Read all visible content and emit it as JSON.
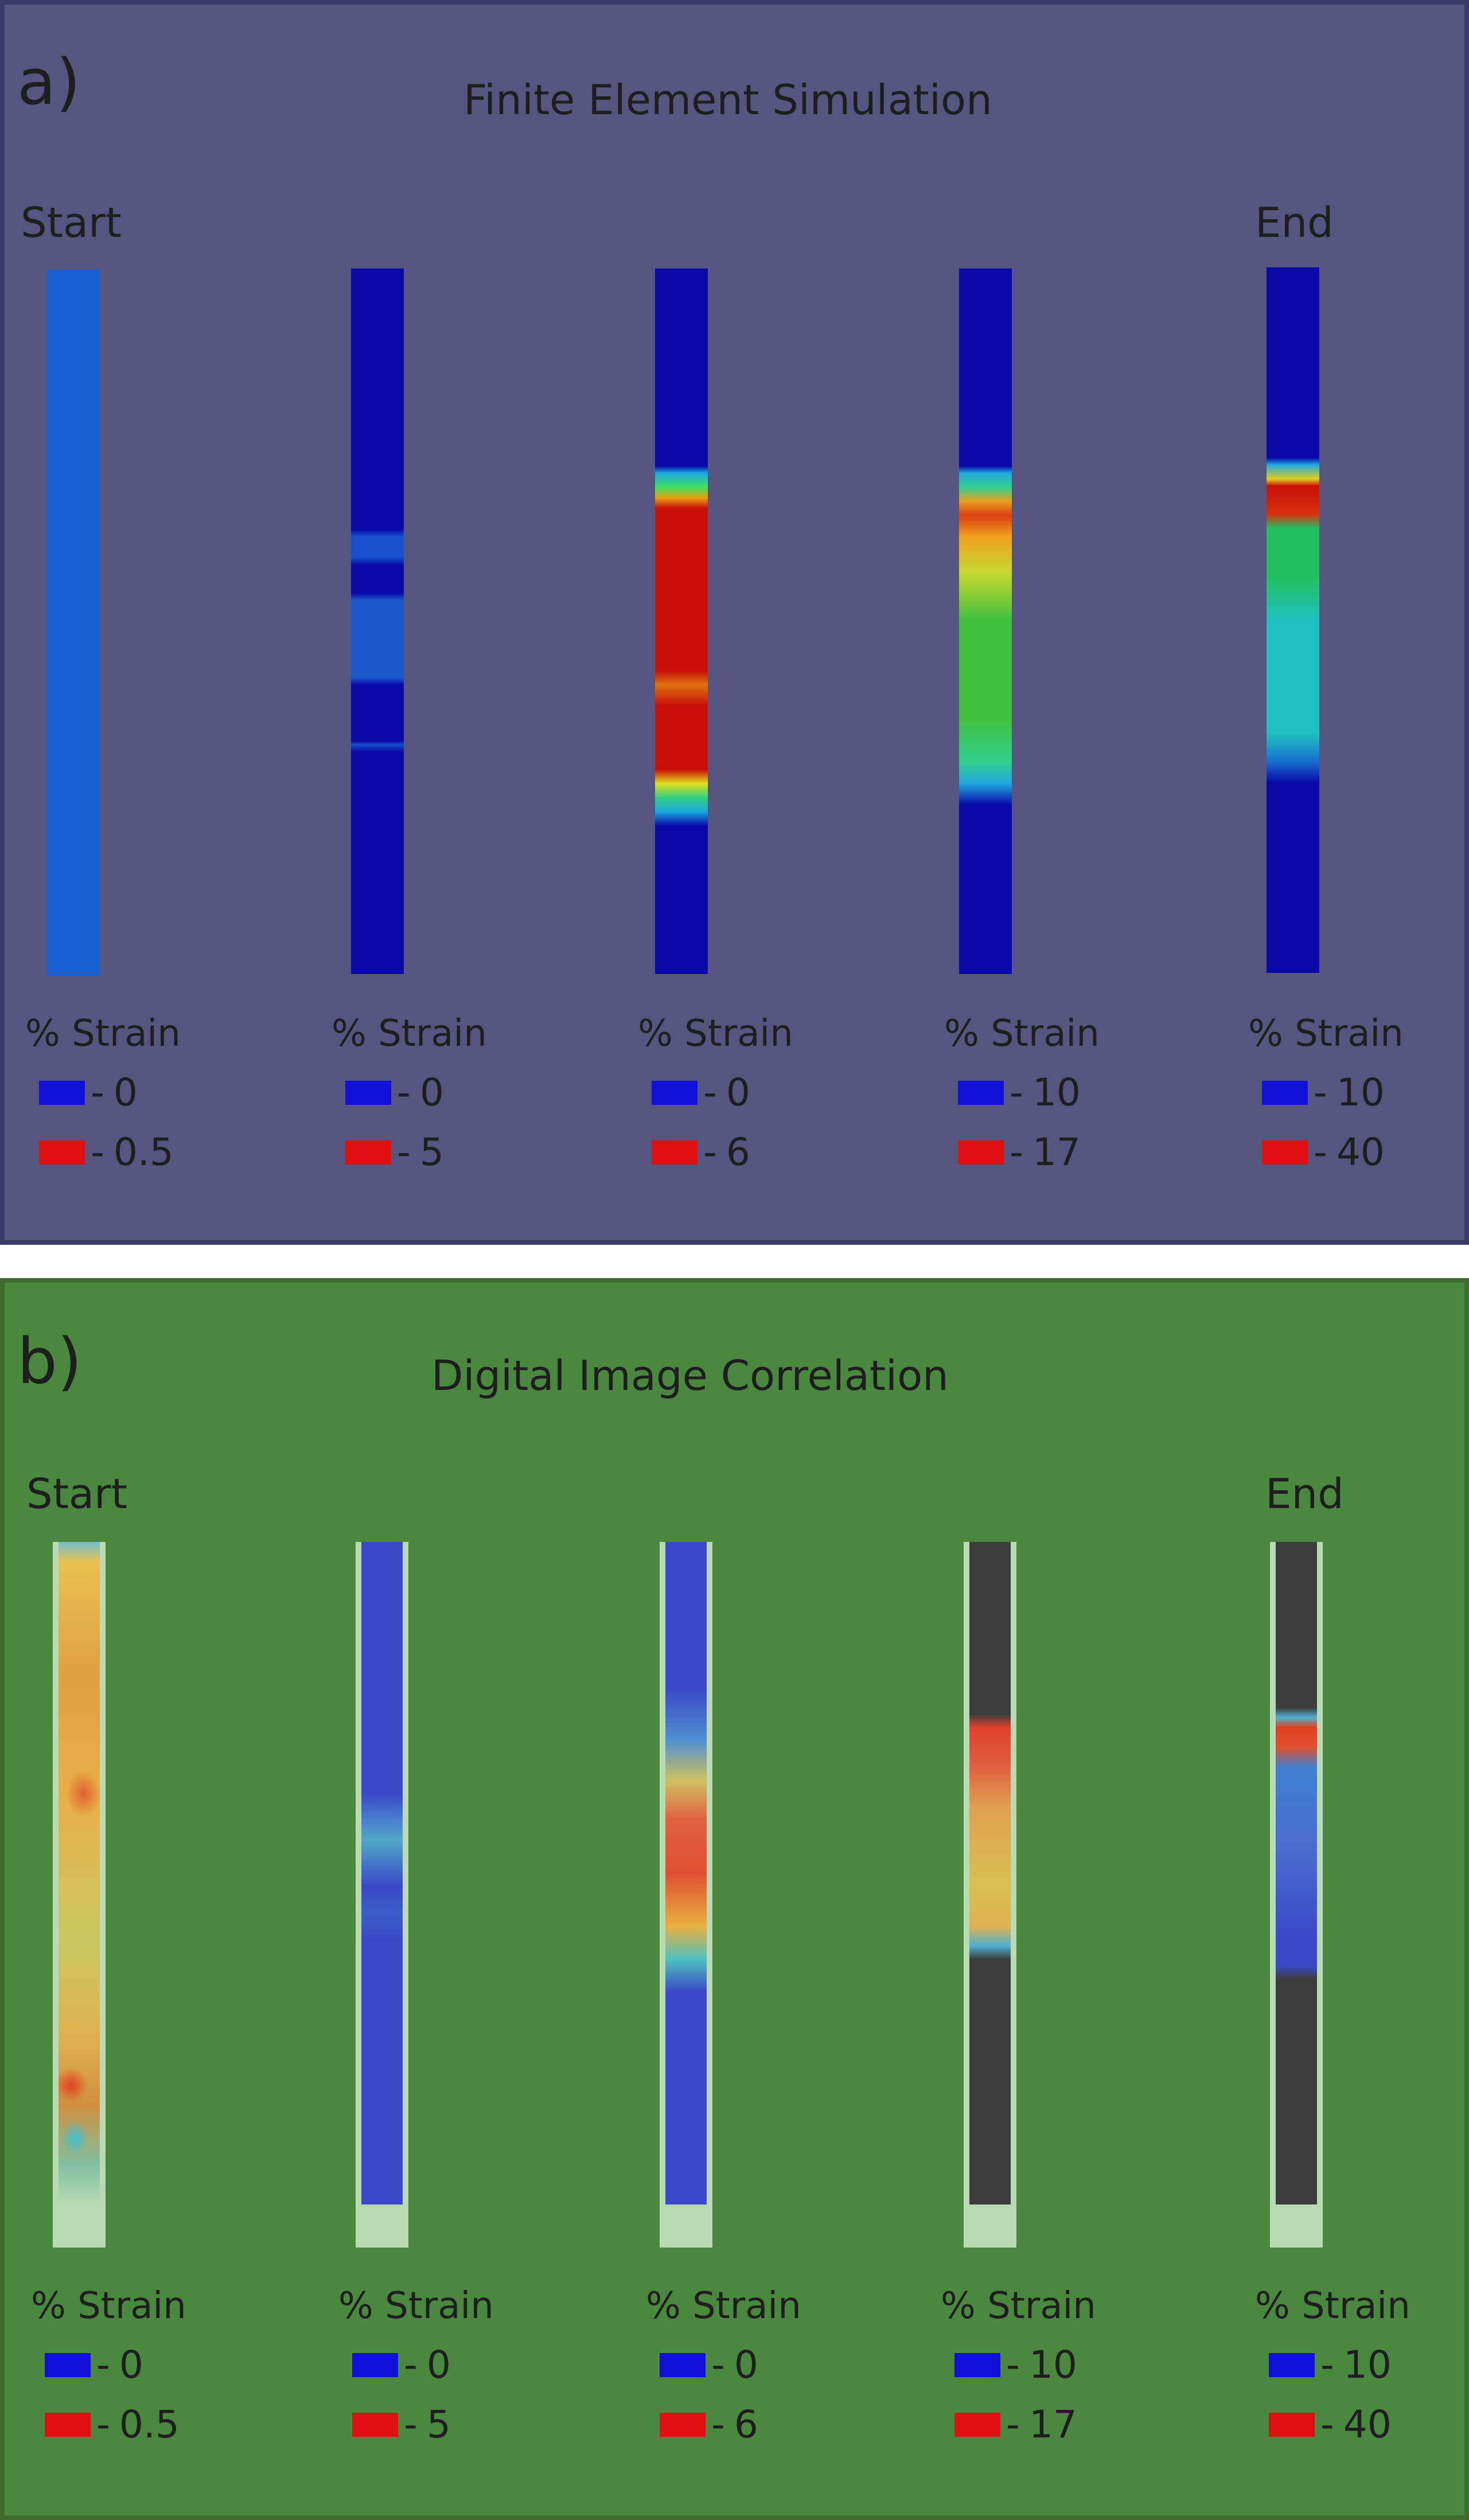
{
  "colors": {
    "panel_a_bg": "#56557f",
    "panel_b_bg": "#4a8840",
    "legend_low": "#1010d8",
    "legend_high": "#e01010"
  },
  "panel_a": {
    "letter": "a)",
    "title": "Finite Element Simulation",
    "start_label": "Start",
    "end_label": "End",
    "legends": [
      {
        "title": "% Strain",
        "low": "0",
        "high": "0.5"
      },
      {
        "title": "% Strain",
        "low": "0",
        "high": "5"
      },
      {
        "title": "% Strain",
        "low": "0",
        "high": "6"
      },
      {
        "title": "% Strain",
        "low": "10",
        "high": "17"
      },
      {
        "title": "% Strain",
        "low": "10",
        "high": "40"
      }
    ]
  },
  "panel_b": {
    "letter": "b)",
    "title": "Digital Image Correlation",
    "start_label": "Start",
    "end_label": "End",
    "legends": [
      {
        "title": "% Strain",
        "low": "0",
        "high": "0.5"
      },
      {
        "title": "% Strain",
        "low": "0",
        "high": "5"
      },
      {
        "title": "% Strain",
        "low": "0",
        "high": "6"
      },
      {
        "title": "% Strain",
        "low": "10",
        "high": "17"
      },
      {
        "title": "% Strain",
        "low": "10",
        "high": "40"
      }
    ]
  },
  "legend_dash": "-"
}
